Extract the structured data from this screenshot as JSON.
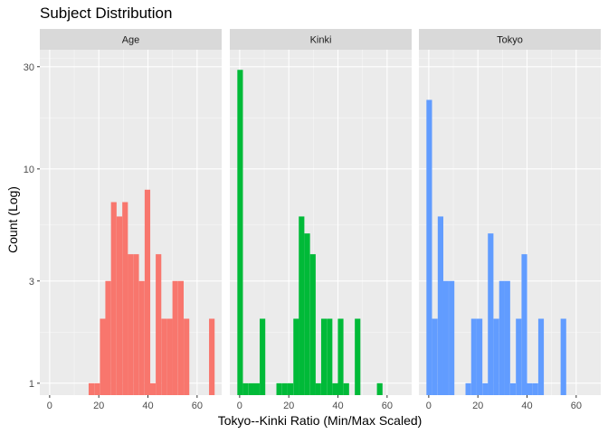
{
  "chart_data": {
    "type": "bar",
    "title": "Subject Distribution",
    "xlabel": "Tokyo--Kinki Ratio (Min/Max Scaled)",
    "ylabel": "Count (Log)",
    "y_scale": "log10",
    "xlim": [
      -4,
      70
    ],
    "ylim": [
      0.88,
      36
    ],
    "x_ticks": [
      0,
      20,
      40,
      60
    ],
    "y_ticks": [
      1,
      3,
      10,
      30
    ],
    "bin_width": 2.27,
    "grid": true,
    "facets": [
      {
        "label": "Age",
        "color": "#F8766D",
        "bins": [
          {
            "x": 17.0,
            "count": 1
          },
          {
            "x": 19.3,
            "count": 1
          },
          {
            "x": 21.6,
            "count": 2
          },
          {
            "x": 23.8,
            "count": 3
          },
          {
            "x": 26.1,
            "count": 7
          },
          {
            "x": 28.4,
            "count": 6
          },
          {
            "x": 30.7,
            "count": 7
          },
          {
            "x": 32.9,
            "count": 4
          },
          {
            "x": 35.2,
            "count": 4
          },
          {
            "x": 37.5,
            "count": 3
          },
          {
            "x": 39.8,
            "count": 8
          },
          {
            "x": 42.0,
            "count": 1
          },
          {
            "x": 44.3,
            "count": 4
          },
          {
            "x": 46.6,
            "count": 2
          },
          {
            "x": 48.9,
            "count": 2
          },
          {
            "x": 51.1,
            "count": 3
          },
          {
            "x": 53.4,
            "count": 3
          },
          {
            "x": 55.7,
            "count": 2
          },
          {
            "x": 66.0,
            "count": 2
          }
        ]
      },
      {
        "label": "Kinki",
        "color": "#00BA38",
        "bins": [
          {
            "x": 0.2,
            "count": 29
          },
          {
            "x": 2.5,
            "count": 1
          },
          {
            "x": 4.8,
            "count": 1
          },
          {
            "x": 7.0,
            "count": 1
          },
          {
            "x": 9.3,
            "count": 2
          },
          {
            "x": 16.1,
            "count": 1
          },
          {
            "x": 18.4,
            "count": 1
          },
          {
            "x": 20.7,
            "count": 1
          },
          {
            "x": 23.0,
            "count": 2
          },
          {
            "x": 25.2,
            "count": 6
          },
          {
            "x": 27.5,
            "count": 5
          },
          {
            "x": 29.8,
            "count": 4
          },
          {
            "x": 32.0,
            "count": 1
          },
          {
            "x": 34.3,
            "count": 2
          },
          {
            "x": 36.6,
            "count": 2
          },
          {
            "x": 38.9,
            "count": 1
          },
          {
            "x": 41.1,
            "count": 2
          },
          {
            "x": 43.4,
            "count": 1
          },
          {
            "x": 48.0,
            "count": 2
          },
          {
            "x": 57.0,
            "count": 1
          }
        ]
      },
      {
        "label": "Tokyo",
        "color": "#619CFF",
        "bins": [
          {
            "x": 0.2,
            "count": 21
          },
          {
            "x": 2.5,
            "count": 2
          },
          {
            "x": 4.8,
            "count": 6
          },
          {
            "x": 7.0,
            "count": 3
          },
          {
            "x": 9.3,
            "count": 3
          },
          {
            "x": 16.1,
            "count": 1
          },
          {
            "x": 18.4,
            "count": 2
          },
          {
            "x": 20.7,
            "count": 2
          },
          {
            "x": 23.0,
            "count": 1
          },
          {
            "x": 25.2,
            "count": 5
          },
          {
            "x": 27.5,
            "count": 2
          },
          {
            "x": 29.8,
            "count": 3
          },
          {
            "x": 32.0,
            "count": 3
          },
          {
            "x": 34.3,
            "count": 1
          },
          {
            "x": 36.6,
            "count": 2
          },
          {
            "x": 38.9,
            "count": 4
          },
          {
            "x": 41.1,
            "count": 1
          },
          {
            "x": 43.4,
            "count": 1
          },
          {
            "x": 45.7,
            "count": 2
          },
          {
            "x": 54.8,
            "count": 2
          }
        ]
      }
    ]
  }
}
